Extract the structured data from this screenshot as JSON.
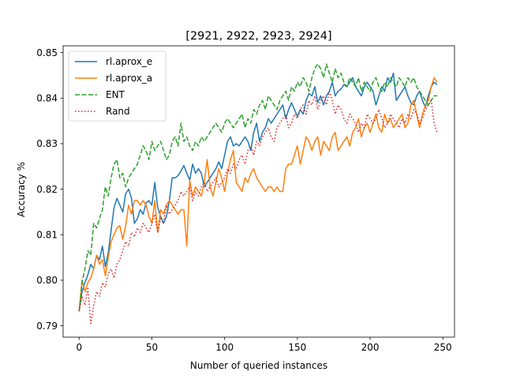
{
  "chart_data": {
    "type": "line",
    "title": "[2921, 2922, 2923, 2924]",
    "xlabel": "Number of queried instances",
    "ylabel": "Accuracy %",
    "xlim": [
      -11,
      258
    ],
    "ylim": [
      0.7875,
      0.8515
    ],
    "xticks": [
      0,
      50,
      100,
      150,
      200,
      250
    ],
    "yticks": [
      0.79,
      0.8,
      0.81,
      0.82,
      0.83,
      0.84,
      0.85
    ],
    "xtick_labels": [
      "0",
      "50",
      "100",
      "150",
      "200",
      "250"
    ],
    "ytick_labels": [
      "0.79",
      "0.80",
      "0.81",
      "0.82",
      "0.83",
      "0.84",
      "0.85"
    ],
    "grid": false,
    "legend_position": "top-left",
    "series": [
      {
        "name": "rl.aprox_e",
        "color": "#1f77b4",
        "style": "solid",
        "x": [
          0,
          2,
          4,
          6,
          8,
          10,
          12,
          14,
          16,
          18,
          20,
          22,
          24,
          26,
          28,
          30,
          32,
          34,
          36,
          38,
          40,
          42,
          44,
          46,
          48,
          50,
          52,
          54,
          56,
          58,
          60,
          62,
          64,
          66,
          68,
          70,
          72,
          74,
          76,
          78,
          80,
          82,
          84,
          86,
          88,
          90,
          92,
          94,
          96,
          98,
          100,
          102,
          104,
          106,
          108,
          110,
          112,
          114,
          116,
          118,
          120,
          122,
          124,
          126,
          128,
          130,
          132,
          134,
          136,
          138,
          140,
          142,
          144,
          146,
          148,
          150,
          152,
          154,
          156,
          158,
          160,
          162,
          164,
          166,
          168,
          170,
          172,
          174,
          176,
          178,
          180,
          182,
          184,
          186,
          188,
          190,
          192,
          194,
          196,
          198,
          200,
          202,
          204,
          206,
          208,
          210,
          212,
          214,
          216,
          218,
          220,
          222,
          224,
          226,
          228,
          230,
          232,
          234,
          236,
          238,
          240,
          242,
          244,
          246
        ],
        "y": [
          0.7932,
          0.7975,
          0.7995,
          0.8012,
          0.8035,
          0.8025,
          0.8055,
          0.8045,
          0.8075,
          0.803,
          0.806,
          0.811,
          0.816,
          0.818,
          0.8165,
          0.815,
          0.819,
          0.82,
          0.818,
          0.8125,
          0.8135,
          0.8155,
          0.8145,
          0.817,
          0.8175,
          0.8165,
          0.8215,
          0.816,
          0.814,
          0.8125,
          0.814,
          0.8175,
          0.8225,
          0.8225,
          0.823,
          0.824,
          0.8252,
          0.8235,
          0.822,
          0.8255,
          0.8235,
          0.8245,
          0.8235,
          0.8205,
          0.8215,
          0.8225,
          0.8235,
          0.8245,
          0.826,
          0.8245,
          0.8275,
          0.8305,
          0.8315,
          0.8295,
          0.83,
          0.8295,
          0.8305,
          0.8315,
          0.8305,
          0.8285,
          0.8325,
          0.8345,
          0.8305,
          0.8325,
          0.8335,
          0.8355,
          0.8345,
          0.8355,
          0.8365,
          0.8375,
          0.8385,
          0.8355,
          0.8375,
          0.839,
          0.8375,
          0.836,
          0.8375,
          0.8365,
          0.8395,
          0.841,
          0.8405,
          0.8425,
          0.839,
          0.8405,
          0.8385,
          0.8405,
          0.8415,
          0.8435,
          0.8405,
          0.8415,
          0.842,
          0.843,
          0.8425,
          0.8435,
          0.8445,
          0.8425,
          0.8415,
          0.8405,
          0.8425,
          0.8435,
          0.8425,
          0.8415,
          0.8385,
          0.8405,
          0.8425,
          0.8415,
          0.8445,
          0.8435,
          0.8455,
          0.8395,
          0.8405,
          0.8415,
          0.8425,
          0.8405,
          0.839,
          0.8385,
          0.8405,
          0.8415,
          0.8395,
          0.838,
          0.8405,
          0.8425,
          0.8435,
          0.843
        ]
      },
      {
        "name": "rl.aprox_a",
        "color": "#ff7f0e",
        "style": "solid",
        "x": [
          0,
          2,
          4,
          6,
          8,
          10,
          12,
          14,
          16,
          18,
          20,
          22,
          24,
          26,
          28,
          30,
          32,
          34,
          36,
          38,
          40,
          42,
          44,
          46,
          48,
          50,
          52,
          54,
          56,
          58,
          60,
          62,
          64,
          66,
          68,
          70,
          72,
          74,
          76,
          78,
          80,
          82,
          84,
          86,
          88,
          90,
          92,
          94,
          96,
          98,
          100,
          102,
          104,
          106,
          108,
          110,
          112,
          114,
          116,
          118,
          120,
          122,
          124,
          126,
          128,
          130,
          132,
          134,
          136,
          138,
          140,
          142,
          144,
          146,
          148,
          150,
          152,
          154,
          156,
          158,
          160,
          162,
          164,
          166,
          168,
          170,
          172,
          174,
          176,
          178,
          180,
          182,
          184,
          186,
          188,
          190,
          192,
          194,
          196,
          198,
          200,
          202,
          204,
          206,
          208,
          210,
          212,
          214,
          216,
          218,
          220,
          222,
          224,
          226,
          228,
          230,
          232,
          234,
          236,
          238,
          240,
          242,
          244,
          246
        ],
        "y": [
          0.7932,
          0.8,
          0.7975,
          0.7995,
          0.8005,
          0.8025,
          0.8055,
          0.8035,
          0.8045,
          0.801,
          0.805,
          0.8085,
          0.81,
          0.8115,
          0.812,
          0.809,
          0.812,
          0.8165,
          0.8145,
          0.8175,
          0.8175,
          0.8165,
          0.8175,
          0.8165,
          0.814,
          0.8125,
          0.8175,
          0.8105,
          0.8155,
          0.8145,
          0.8165,
          0.8175,
          0.8165,
          0.8155,
          0.8145,
          0.8155,
          0.8155,
          0.8075,
          0.822,
          0.8185,
          0.8205,
          0.8195,
          0.8185,
          0.8215,
          0.8265,
          0.8205,
          0.8185,
          0.8215,
          0.8245,
          0.8225,
          0.8195,
          0.8235,
          0.8265,
          0.8285,
          0.8215,
          0.8205,
          0.8195,
          0.8225,
          0.8215,
          0.8235,
          0.8245,
          0.8225,
          0.8215,
          0.8205,
          0.8195,
          0.8205,
          0.8205,
          0.8195,
          0.8205,
          0.8195,
          0.8195,
          0.8245,
          0.8255,
          0.8255,
          0.8275,
          0.8295,
          0.8255,
          0.8285,
          0.8315,
          0.8305,
          0.8285,
          0.8305,
          0.8315,
          0.8275,
          0.8305,
          0.8295,
          0.8285,
          0.8315,
          0.8325,
          0.8285,
          0.8295,
          0.8305,
          0.8315,
          0.8295,
          0.8325,
          0.8335,
          0.8355,
          0.8315,
          0.8335,
          0.8345,
          0.8325,
          0.8345,
          0.8365,
          0.8335,
          0.8325,
          0.8365,
          0.8345,
          0.8355,
          0.8335,
          0.8345,
          0.8355,
          0.8365,
          0.8335,
          0.8345,
          0.8385,
          0.8395,
          0.8365,
          0.8335,
          0.8365,
          0.8385,
          0.8395,
          0.8425,
          0.8445,
          0.8435
        ]
      },
      {
        "name": "ENT",
        "color": "#2ca02c",
        "style": "dashed",
        "x": [
          0,
          2,
          4,
          6,
          8,
          10,
          12,
          14,
          16,
          18,
          20,
          22,
          24,
          26,
          28,
          30,
          32,
          34,
          36,
          38,
          40,
          42,
          44,
          46,
          48,
          50,
          52,
          54,
          56,
          58,
          60,
          62,
          64,
          66,
          68,
          70,
          72,
          74,
          76,
          78,
          80,
          82,
          84,
          86,
          88,
          90,
          92,
          94,
          96,
          98,
          100,
          102,
          104,
          106,
          108,
          110,
          112,
          114,
          116,
          118,
          120,
          122,
          124,
          126,
          128,
          130,
          132,
          134,
          136,
          138,
          140,
          142,
          144,
          146,
          148,
          150,
          152,
          154,
          156,
          158,
          160,
          162,
          164,
          166,
          168,
          170,
          172,
          174,
          176,
          178,
          180,
          182,
          184,
          186,
          188,
          190,
          192,
          194,
          196,
          198,
          200,
          202,
          204,
          206,
          208,
          210,
          212,
          214,
          216,
          218,
          220,
          222,
          224,
          226,
          228,
          230,
          232,
          234,
          236,
          238,
          240,
          242,
          244,
          246
        ],
        "y": [
          0.7932,
          0.7995,
          0.8025,
          0.8065,
          0.8055,
          0.8125,
          0.8115,
          0.8135,
          0.8155,
          0.8205,
          0.8185,
          0.8225,
          0.8255,
          0.8265,
          0.8225,
          0.8235,
          0.8205,
          0.8225,
          0.8235,
          0.8245,
          0.8255,
          0.8275,
          0.8295,
          0.8285,
          0.8265,
          0.8305,
          0.8285,
          0.8295,
          0.8305,
          0.8285,
          0.8265,
          0.8275,
          0.8305,
          0.8315,
          0.8295,
          0.8345,
          0.8305,
          0.8315,
          0.8295,
          0.8285,
          0.8305,
          0.8295,
          0.8315,
          0.8305,
          0.8315,
          0.8325,
          0.8335,
          0.8345,
          0.8335,
          0.8325,
          0.8345,
          0.8355,
          0.8345,
          0.8335,
          0.8345,
          0.8355,
          0.8365,
          0.8335,
          0.8355,
          0.8345,
          0.8375,
          0.8365,
          0.8385,
          0.8395,
          0.8375,
          0.8405,
          0.8395,
          0.8385,
          0.8375,
          0.8395,
          0.8405,
          0.8415,
          0.8395,
          0.8425,
          0.8415,
          0.8435,
          0.8425,
          0.8445,
          0.8435,
          0.8415,
          0.8445,
          0.8465,
          0.8475,
          0.8465,
          0.8445,
          0.8475,
          0.8455,
          0.8435,
          0.8465,
          0.8445,
          0.8455,
          0.8435,
          0.8425,
          0.8445,
          0.8435,
          0.8425,
          0.8445,
          0.8415,
          0.8435,
          0.8425,
          0.8415,
          0.8435,
          0.8445,
          0.8425,
          0.8415,
          0.8435,
          0.8425,
          0.8445,
          0.8435,
          0.8425,
          0.8445,
          0.8435,
          0.8425,
          0.8445,
          0.8435,
          0.8445,
          0.8425,
          0.8415,
          0.8405,
          0.8395,
          0.8385,
          0.8395,
          0.8405,
          0.8405
        ]
      },
      {
        "name": "Rand",
        "color": "#d62728",
        "style": "dotted",
        "x": [
          0,
          2,
          4,
          6,
          8,
          10,
          12,
          14,
          16,
          18,
          20,
          22,
          24,
          26,
          28,
          30,
          32,
          34,
          36,
          38,
          40,
          42,
          44,
          46,
          48,
          50,
          52,
          54,
          56,
          58,
          60,
          62,
          64,
          66,
          68,
          70,
          72,
          74,
          76,
          78,
          80,
          82,
          84,
          86,
          88,
          90,
          92,
          94,
          96,
          98,
          100,
          102,
          104,
          106,
          108,
          110,
          112,
          114,
          116,
          118,
          120,
          122,
          124,
          126,
          128,
          130,
          132,
          134,
          136,
          138,
          140,
          142,
          144,
          146,
          148,
          150,
          152,
          154,
          156,
          158,
          160,
          162,
          164,
          166,
          168,
          170,
          172,
          174,
          176,
          178,
          180,
          182,
          184,
          186,
          188,
          190,
          192,
          194,
          196,
          198,
          200,
          202,
          204,
          206,
          208,
          210,
          212,
          214,
          216,
          218,
          220,
          222,
          224,
          226,
          228,
          230,
          232,
          234,
          236,
          238,
          240,
          242,
          244,
          246
        ],
        "y": [
          0.7932,
          0.7965,
          0.7945,
          0.7985,
          0.7905,
          0.7945,
          0.7975,
          0.7965,
          0.7995,
          0.7985,
          0.8015,
          0.8025,
          0.8005,
          0.8035,
          0.8045,
          0.8065,
          0.8085,
          0.8075,
          0.8105,
          0.8095,
          0.8115,
          0.8105,
          0.8125,
          0.8115,
          0.8105,
          0.8125,
          0.8145,
          0.8105,
          0.8135,
          0.8125,
          0.8165,
          0.8145,
          0.8155,
          0.8165,
          0.8175,
          0.8195,
          0.8185,
          0.8195,
          0.8205,
          0.8175,
          0.8195,
          0.8185,
          0.8205,
          0.8215,
          0.8195,
          0.8205,
          0.8215,
          0.8225,
          0.8205,
          0.8215,
          0.8225,
          0.8245,
          0.8235,
          0.8255,
          0.8245,
          0.8265,
          0.8275,
          0.8255,
          0.8285,
          0.8295,
          0.8275,
          0.8305,
          0.8295,
          0.8315,
          0.8325,
          0.8335,
          0.8315,
          0.8305,
          0.8335,
          0.8345,
          0.8355,
          0.8365,
          0.8335,
          0.8345,
          0.8365,
          0.8355,
          0.8375,
          0.8385,
          0.8365,
          0.8395,
          0.8385,
          0.8405,
          0.8375,
          0.8395,
          0.8405,
          0.8385,
          0.8415,
          0.8395,
          0.8365,
          0.8385,
          0.8375,
          0.8355,
          0.8345,
          0.8365,
          0.8355,
          0.8345,
          0.8325,
          0.8345,
          0.8335,
          0.8365,
          0.8355,
          0.8345,
          0.8355,
          0.8375,
          0.8355,
          0.8335,
          0.8345,
          0.8365,
          0.8355,
          0.8345,
          0.8335,
          0.8355,
          0.8345,
          0.8365,
          0.8355,
          0.8375,
          0.8365,
          0.8345,
          0.8355,
          0.8375,
          0.8385,
          0.8395,
          0.8345,
          0.8325
        ]
      }
    ]
  }
}
